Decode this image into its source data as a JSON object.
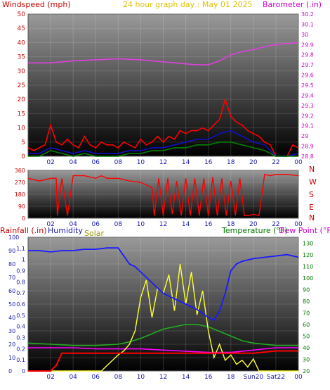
{
  "header": {
    "wind_label": "Windspeed (mph)",
    "graph_title": "24 hour graph day : May 01 2025",
    "baro_label": "Barometer (.in)",
    "rain_label": "Rainfall (.in)",
    "humidity_label": "Humidity",
    "solar_label": "Solar",
    "temp_label": "Temperature (°F)",
    "dew_label": "Dew Point (°F)"
  },
  "colors": {
    "wind_gust": "#ff0000",
    "wind_avg": "#1010c8",
    "wind_low": "#008000",
    "barometer": "#e040e0",
    "direction": "#ff0000",
    "rain": "#ff0000",
    "humidity": "#1a1aff",
    "solar": "#ffff33",
    "temperature": "#22aa22",
    "dew_point": "#ff00ff",
    "label_red": "#cc0000",
    "label_magenta": "#cc00cc",
    "label_title": "#e0c000",
    "label_blue": "#1a1aaa",
    "label_olive": "#999900",
    "label_green": "#007700"
  },
  "chart_data": [
    {
      "type": "line",
      "title": "24 hour graph day : May 01 2025",
      "x_ticks": [
        "02",
        "04",
        "06",
        "08",
        "10",
        "12",
        "14",
        "16",
        "18",
        "20",
        "22",
        "00"
      ],
      "xlim": [
        0,
        24
      ],
      "y_left": {
        "label": "Windspeed (mph)",
        "ylim": [
          0,
          50
        ],
        "ticks": [
          "0",
          "5",
          "10",
          "15",
          "20",
          "25",
          "30",
          "35",
          "40",
          "45",
          "50"
        ]
      },
      "y_right": {
        "label": "Barometer (.in)",
        "ylim": [
          28.8,
          30.2
        ],
        "ticks": [
          "28.8",
          "28.9",
          "29",
          "29.1",
          "29.2",
          "29.3",
          "29.4",
          "29.5",
          "29.6",
          "29.7",
          "29.8",
          "29.9",
          "30",
          "30.1",
          "30.2"
        ]
      },
      "series": [
        {
          "axis": "left",
          "x": [
            0,
            0.5,
            1,
            1.5,
            2,
            2.5,
            3,
            3.5,
            4,
            4.5,
            5,
            5.5,
            6,
            6.5,
            7,
            7.5,
            8,
            8.5,
            9,
            9.5,
            10,
            10.5,
            11,
            11.5,
            12,
            12.5,
            13,
            13.5,
            14,
            14.5,
            15,
            15.5,
            16,
            16.5,
            17,
            17.5,
            18,
            18.5,
            19,
            19.5,
            20,
            20.5,
            21,
            21.5,
            22,
            22.5,
            23,
            23.5,
            24
          ],
          "values": [
            3,
            2,
            3,
            4,
            11,
            5,
            4,
            6,
            4,
            3,
            7,
            4,
            3,
            5,
            4,
            4,
            3,
            5,
            4,
            3,
            6,
            4,
            5,
            7,
            5,
            7,
            6,
            9,
            8,
            9,
            9,
            10,
            9,
            11,
            13,
            20,
            14,
            12,
            11,
            9,
            8,
            7,
            5,
            4,
            0,
            0,
            0,
            4,
            3
          ]
        },
        {
          "axis": "left",
          "x": [
            0,
            1,
            2,
            3,
            4,
            5,
            6,
            7,
            8,
            9,
            10,
            11,
            12,
            13,
            14,
            15,
            16,
            17,
            18,
            19,
            20,
            21,
            22,
            23,
            24
          ],
          "values": [
            1,
            1,
            3,
            2,
            1,
            2,
            1,
            1,
            1,
            2,
            2,
            3,
            3,
            4,
            5,
            6,
            6,
            8,
            9,
            7,
            5,
            4,
            0,
            0,
            1
          ]
        },
        {
          "axis": "left",
          "x": [
            0,
            1,
            2,
            3,
            4,
            5,
            6,
            7,
            8,
            9,
            10,
            11,
            12,
            13,
            14,
            15,
            16,
            17,
            18,
            19,
            20,
            21,
            22,
            23,
            24
          ],
          "values": [
            0,
            0,
            2,
            1,
            0,
            1,
            0,
            0,
            0,
            1,
            1,
            2,
            2,
            3,
            3,
            4,
            4,
            5,
            5,
            4,
            3,
            2,
            0,
            0,
            0
          ]
        },
        {
          "axis": "right",
          "x": [
            0,
            2,
            4,
            6,
            8,
            10,
            12,
            14,
            15,
            16,
            17,
            18,
            19,
            20,
            21,
            22,
            23,
            24
          ],
          "values": [
            29.72,
            29.72,
            29.74,
            29.75,
            29.76,
            29.75,
            29.73,
            29.71,
            29.7,
            29.7,
            29.74,
            29.8,
            29.83,
            29.85,
            29.88,
            29.9,
            29.91,
            29.92
          ]
        }
      ]
    },
    {
      "type": "line",
      "x_ticks": [
        "02",
        "04",
        "06",
        "08",
        "10",
        "12",
        "14",
        "16",
        "18",
        "20",
        "22",
        "00"
      ],
      "xlim": [
        0,
        24
      ],
      "y_left": {
        "ylim": [
          0,
          360
        ],
        "ticks": [
          "0",
          "90",
          "180",
          "270",
          "360"
        ]
      },
      "y_right": {
        "ticks": [
          "N",
          "W",
          "S",
          "E",
          "N"
        ]
      },
      "series": [
        {
          "axis": "left",
          "x": [
            0,
            1,
            2,
            2.5,
            2.6,
            3,
            3.5,
            4,
            5,
            6,
            6.5,
            7,
            8,
            9,
            10,
            11,
            11.2,
            11.6,
            12,
            12.4,
            12.8,
            13.2,
            13.6,
            14,
            14.4,
            14.8,
            15.2,
            15.6,
            16,
            16.4,
            16.8,
            17.2,
            17.6,
            18,
            18.4,
            18.8,
            19.2,
            19.6,
            20,
            20.5,
            21,
            21.5,
            22,
            23,
            24
          ],
          "values": [
            300,
            280,
            300,
            300,
            20,
            300,
            20,
            320,
            320,
            300,
            320,
            300,
            300,
            280,
            270,
            230,
            20,
            300,
            20,
            300,
            30,
            280,
            20,
            300,
            20,
            300,
            20,
            300,
            20,
            310,
            20,
            300,
            20,
            280,
            20,
            300,
            20,
            20,
            30,
            20,
            330,
            320,
            330,
            330,
            320
          ]
        }
      ]
    },
    {
      "type": "line",
      "x_ticks": [
        "02",
        "04",
        "06",
        "08",
        "10",
        "12",
        "14",
        "16",
        "18",
        "Sun20",
        "Sat22",
        "00"
      ],
      "xlim": [
        0,
        24
      ],
      "y_left_pct": {
        "label": "Humidity",
        "ylim": [
          0,
          100
        ],
        "ticks": [
          "0",
          "10",
          "20",
          "30",
          "40",
          "50",
          "60",
          "70",
          "80",
          "90",
          "100"
        ]
      },
      "y_left_rain": {
        "label": "Rainfall (.in)",
        "ylim": [
          0,
          1.2
        ],
        "ticks": [
          "0",
          "0.1",
          "0.2",
          "0.3",
          "0.4",
          "0.5",
          "0.6",
          "0.7",
          "0.8",
          "0.9",
          "1",
          "1.1"
        ]
      },
      "y_right": {
        "label": "Temperature (°F)",
        "ylim": [
          20,
          135
        ],
        "ticks": [
          "20",
          "30",
          "40",
          "50",
          "60",
          "70",
          "80",
          "90",
          "100",
          "110",
          "120",
          "130"
        ]
      },
      "series": [
        {
          "name": "Rainfall (.in)",
          "axis": "rain",
          "x": [
            0,
            2,
            2.5,
            3,
            3.5,
            12,
            16,
            18,
            20,
            22,
            24
          ],
          "values": [
            0,
            0,
            0.05,
            0.16,
            0.16,
            0.16,
            0.16,
            0.16,
            0.16,
            0.18,
            0.18
          ]
        },
        {
          "name": "Humidity",
          "axis": "pct",
          "x": [
            0,
            1,
            2,
            3,
            4,
            5,
            6,
            7,
            8,
            8.5,
            9,
            9.5,
            10,
            10.5,
            11,
            12,
            13,
            14,
            15,
            16,
            16.5,
            17,
            17.5,
            18,
            18.5,
            19,
            20,
            21,
            22,
            23,
            24
          ],
          "values": [
            90,
            90,
            89,
            90,
            90,
            91,
            91,
            92,
            92,
            86,
            80,
            78,
            74,
            70,
            66,
            58,
            54,
            50,
            46,
            40,
            38,
            45,
            58,
            75,
            80,
            82,
            84,
            85,
            86,
            87,
            85
          ]
        },
        {
          "name": "Solar",
          "axis": "pct",
          "x": [
            0,
            6.5,
            7.5,
            8,
            8.5,
            9,
            9.5,
            10,
            10.5,
            11,
            11.5,
            12,
            12.5,
            13,
            13.5,
            14,
            14.5,
            15,
            15.5,
            16,
            16.5,
            17,
            17.5,
            18,
            18.5,
            19,
            19.5,
            20,
            20.5,
            21,
            24
          ],
          "values": [
            0,
            0,
            8,
            12,
            15,
            20,
            30,
            55,
            68,
            40,
            62,
            58,
            72,
            45,
            80,
            50,
            74,
            42,
            60,
            30,
            10,
            20,
            8,
            12,
            5,
            8,
            3,
            9,
            0,
            0,
            0
          ]
        },
        {
          "name": "Temperature (°F)",
          "axis": "right",
          "x": [
            0,
            2,
            4,
            6,
            8,
            9,
            10,
            11,
            12,
            13,
            14,
            15,
            16,
            17,
            18,
            19,
            20,
            22,
            24
          ],
          "values": [
            44,
            43,
            42,
            42,
            43,
            45,
            48,
            52,
            56,
            58,
            60,
            60,
            58,
            54,
            50,
            46,
            44,
            42,
            42
          ]
        },
        {
          "name": "Dew Point (°F)",
          "axis": "right",
          "x": [
            0,
            2,
            4,
            6,
            8,
            10,
            12,
            14,
            16,
            18,
            20,
            22,
            24
          ],
          "values": [
            40,
            40,
            40,
            39,
            39,
            39,
            38,
            37,
            36,
            36,
            38,
            40,
            40
          ]
        }
      ]
    }
  ]
}
